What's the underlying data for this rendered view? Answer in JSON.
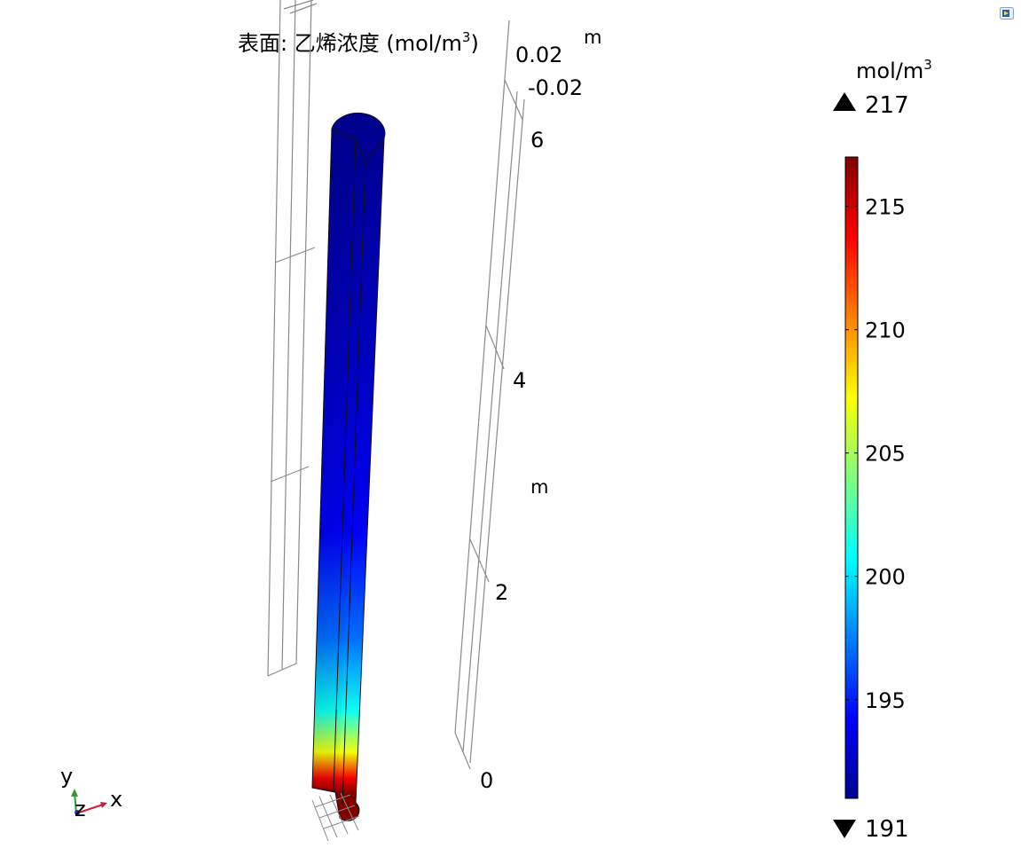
{
  "chart_data": {
    "type": "heatmap",
    "title": "表面: 乙烯浓度 (mol/m",
    "title_sup": "3",
    "title_close": ")",
    "colorbar": {
      "unit": "mol/m",
      "unit_sup": "3",
      "max_value": 217,
      "min_value": 191,
      "max_label": "217",
      "min_label": "191",
      "ticks": [
        215,
        210,
        205,
        200,
        195
      ],
      "tick_labels": [
        "215",
        "210",
        "205",
        "200",
        "195"
      ],
      "colormap": "rainbow (jet)",
      "max_marker": "up-triangle",
      "min_marker": "down-triangle"
    },
    "field": {
      "description_stops": [
        {
          "height_m": 0.0,
          "value": 217
        },
        {
          "height_m": 0.15,
          "value": 214
        },
        {
          "height_m": 0.4,
          "value": 207
        },
        {
          "height_m": 0.8,
          "value": 201
        },
        {
          "height_m": 1.5,
          "value": 197
        },
        {
          "height_m": 2.5,
          "value": 194
        },
        {
          "height_m": 4.0,
          "value": 192.5
        },
        {
          "height_m": 6.4,
          "value": 191
        }
      ]
    },
    "axes": {
      "z_axis": {
        "unit": "m",
        "ticks": [
          "0",
          "2",
          "4",
          "6"
        ],
        "range": [
          0,
          6.4
        ]
      },
      "y_axis": {
        "unit": "m",
        "ticks": [
          "0.02",
          "-0.02"
        ]
      }
    },
    "triad": {
      "y": "y",
      "z": "z",
      "x": "x"
    },
    "grid": true
  },
  "colors": {
    "axis_lines": "#8a8a8a",
    "triad_x": "#cc1f3e",
    "triad_y": "#2e9a2e",
    "triad_z": "#2b2bc8"
  },
  "icons": {
    "corner": "toolbar-play-icon"
  }
}
